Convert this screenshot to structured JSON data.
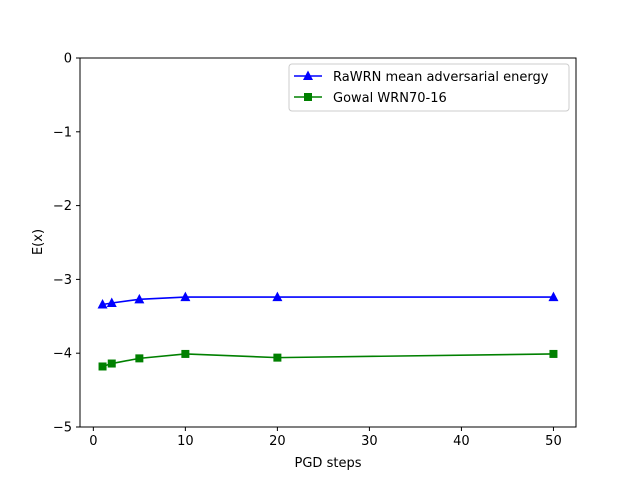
{
  "chart_data": {
    "type": "line",
    "title": "",
    "xlabel": "PGD steps",
    "ylabel": "E(x)",
    "xlim": [
      -1.45,
      52.45
    ],
    "ylim": [
      -5,
      0
    ],
    "xticks": [
      0,
      10,
      20,
      30,
      40,
      50
    ],
    "xtick_labels": [
      "0",
      "10",
      "20",
      "30",
      "40",
      "50"
    ],
    "yticks": [
      0,
      -1,
      -2,
      -3,
      -4,
      -5
    ],
    "ytick_labels": [
      "0",
      "−1",
      "−2",
      "−3",
      "−4",
      "−5"
    ],
    "grid": false,
    "legend_position": "top-right",
    "series": [
      {
        "name": "RaWRN mean adversarial energy",
        "color": "#0000ff",
        "marker": "triangle-up",
        "x": [
          1,
          2,
          5,
          10,
          20,
          50
        ],
        "y": [
          -3.34,
          -3.32,
          -3.27,
          -3.24,
          -3.24,
          -3.24
        ]
      },
      {
        "name": "Gowal WRN70-16",
        "color": "#008000",
        "marker": "square",
        "x": [
          1,
          2,
          5,
          10,
          20,
          50
        ],
        "y": [
          -4.18,
          -4.14,
          -4.07,
          -4.01,
          -4.06,
          -4.01
        ]
      }
    ]
  }
}
